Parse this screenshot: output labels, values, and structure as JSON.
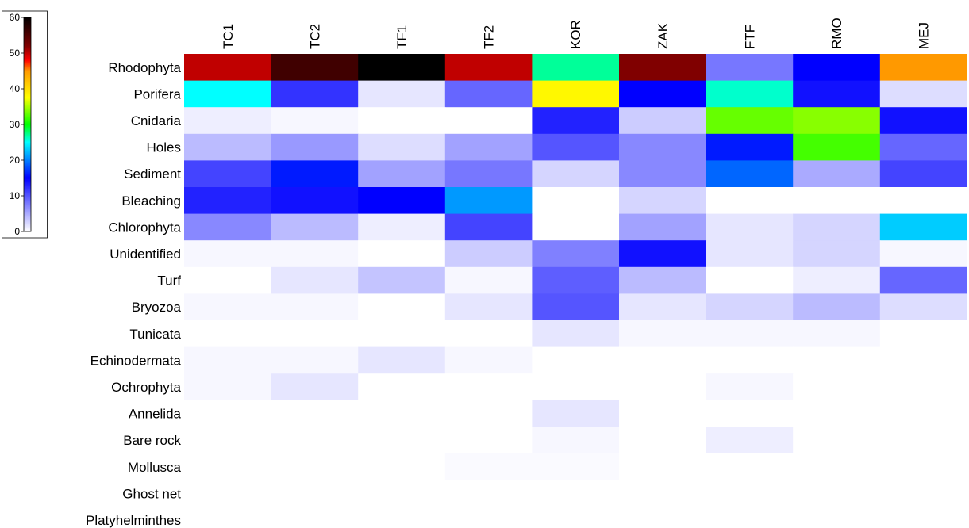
{
  "chart_data": {
    "type": "heatmap",
    "title": "",
    "xlabel": "",
    "ylabel": "",
    "columns": [
      "TC1",
      "TC2",
      "TF1",
      "TF2",
      "KOR",
      "ZAK",
      "FTF",
      "RMO",
      "MEJ"
    ],
    "rows": [
      "Rhodophyta",
      "Porifera",
      "Cnidaria",
      "Holes",
      "Sediment",
      "Bleaching",
      "Chlorophyta",
      "Unidentified",
      "Turf",
      "Bryozoa",
      "Tunicata",
      "Echinodermata",
      "Ochrophyta",
      "Annelida",
      "Bare rock",
      "Mollusca",
      "Ghost net",
      "Platyhelminthes"
    ],
    "values": [
      [
        50,
        56,
        60,
        50,
        27,
        52,
        8,
        15,
        45
      ],
      [
        25,
        12,
        1.5,
        9,
        38,
        15,
        26,
        14,
        2
      ],
      [
        1,
        0.5,
        0,
        0,
        13,
        3,
        33,
        34,
        14
      ],
      [
        4,
        6,
        2,
        5.5,
        10,
        7,
        16,
        32,
        9
      ],
      [
        11,
        16,
        5.5,
        8,
        2.5,
        7,
        19,
        5,
        11
      ],
      [
        13,
        14,
        15,
        21,
        0,
        2.5,
        0,
        0,
        0
      ],
      [
        7,
        4,
        1,
        11,
        0,
        5.5,
        1.5,
        2.5,
        23
      ],
      [
        0.5,
        0.5,
        0,
        3,
        7.5,
        14,
        1.5,
        2.5,
        0.5
      ],
      [
        0,
        1.5,
        3.5,
        0.5,
        9.5,
        4,
        0,
        1,
        9
      ],
      [
        0.5,
        0.5,
        0,
        1.5,
        10,
        1.5,
        2.5,
        4,
        2
      ],
      [
        0,
        0,
        0,
        0,
        1.5,
        0.5,
        0.5,
        0.5,
        0
      ],
      [
        0.5,
        0.5,
        1.5,
        0.5,
        0,
        0,
        0,
        0,
        0
      ],
      [
        0.5,
        1.5,
        0,
        0,
        0,
        0,
        0.5,
        0,
        0
      ],
      [
        0,
        0,
        0,
        0,
        1.5,
        0,
        0,
        0,
        0
      ],
      [
        0,
        0,
        0,
        0,
        0.5,
        0,
        1,
        0,
        0
      ],
      [
        0,
        0,
        0,
        0.3,
        0.3,
        0,
        0,
        0,
        0
      ],
      [
        0,
        0,
        0,
        0,
        0,
        0,
        0,
        0,
        0
      ],
      [
        0,
        0,
        0,
        0,
        0,
        0,
        0,
        0,
        0
      ]
    ],
    "colorbar": {
      "min": 0,
      "max": 60,
      "ticks": [
        0,
        10,
        20,
        30,
        40,
        50,
        60
      ],
      "colors": [
        {
          "value": 0,
          "color": "#ffffff"
        },
        {
          "value": 15,
          "color": "#0000ff"
        },
        {
          "value": 20,
          "color": "#0080ff"
        },
        {
          "value": 25,
          "color": "#00ffff"
        },
        {
          "value": 30,
          "color": "#00ff00"
        },
        {
          "value": 37.5,
          "color": "#ffff00"
        },
        {
          "value": 45,
          "color": "#ff9900"
        },
        {
          "value": 48,
          "color": "#ff0000"
        },
        {
          "value": 52,
          "color": "#800000"
        },
        {
          "value": 60,
          "color": "#000000"
        }
      ]
    }
  }
}
